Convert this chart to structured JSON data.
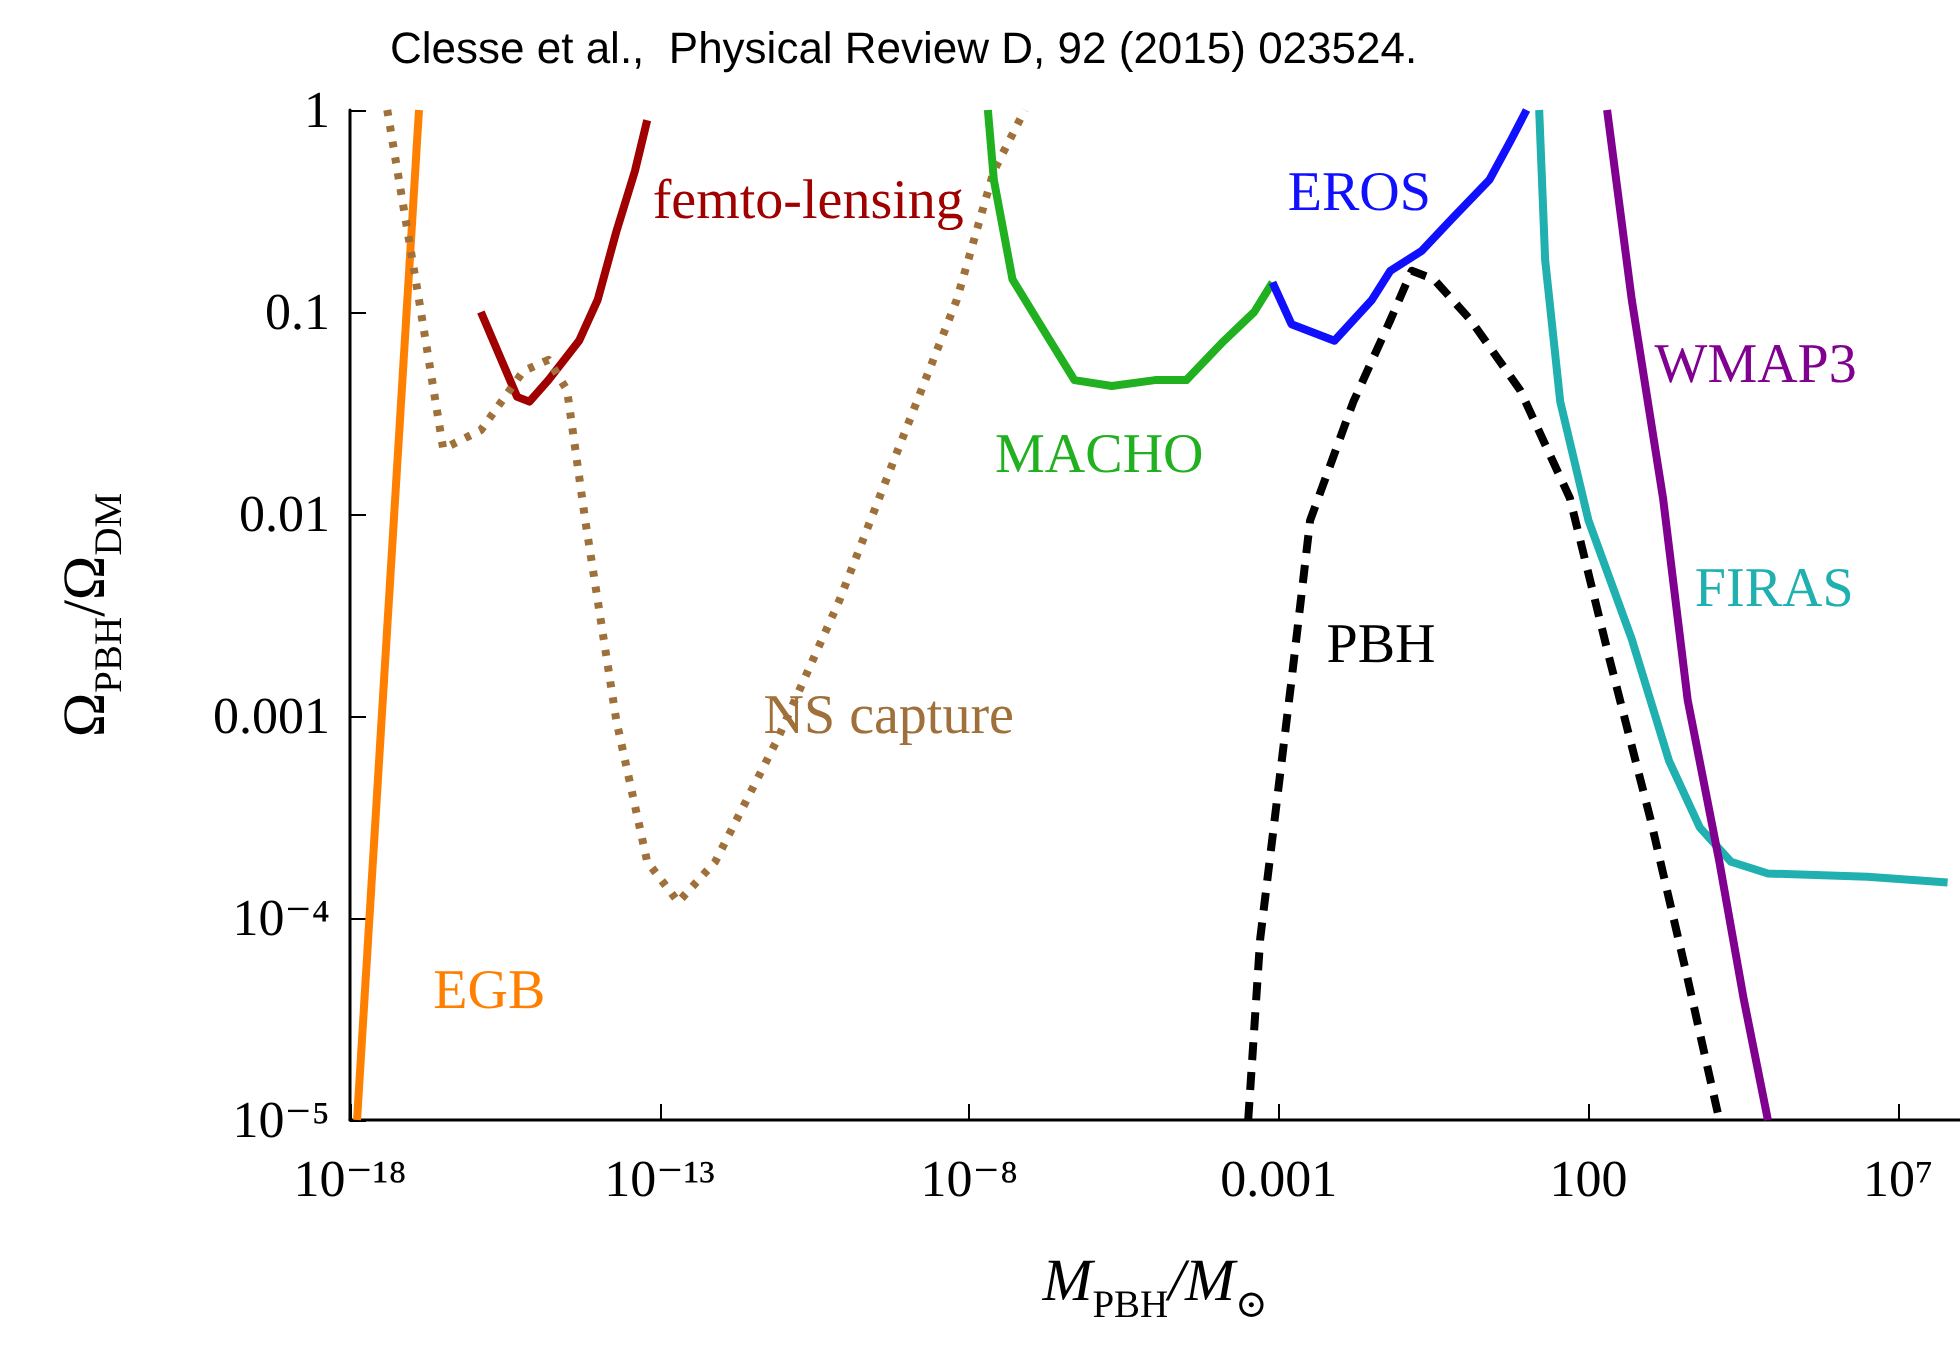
{
  "chart_data": {
    "type": "line",
    "title": "Clesse et al.,  Physical Review D, 92 (2015) 023524.",
    "xlabel": "M$_{PBH}$/M$_{⊙}$",
    "ylabel": "Ω$_{PBH}$/Ω$_{DM}$",
    "log": "xy",
    "grid": false,
    "legend": false,
    "marker": "none",
    "line_style": "solid",
    "xlim": [
      1e-18,
      100000000.0
    ],
    "ylim": [
      1e-05,
      1
    ],
    "xticks": [
      {
        "value": 1e-18,
        "label": "10⁻¹⁸"
      },
      {
        "value": 1e-13,
        "label": "10⁻¹³"
      },
      {
        "value": 1e-08,
        "label": "10⁻⁸"
      },
      0.001,
      100,
      {
        "value": 10000000.0,
        "label": "10⁷"
      }
    ],
    "yticks": [
      {
        "value": 1e-05,
        "label": "10⁻⁵"
      },
      {
        "value": 0.0001,
        "label": "10⁻⁴"
      },
      0.001,
      0.01,
      0.1,
      1
    ],
    "series": [
      {
        "name": "EGB",
        "color": "#ff8000",
        "x": [
          1.3e-18,
          1.3e-17
        ],
        "values": [
          1e-05,
          1
        ]
      },
      {
        "name": "femto-lensing",
        "color": "#a00000",
        "x": [
          1.3e-16,
          5e-16,
          7.9e-16,
          1.6e-15,
          5e-15,
          1e-14,
          2e-14,
          4e-14,
          6.3e-14
        ],
        "values": [
          0.1,
          0.038,
          0.036,
          0.046,
          0.072,
          0.115,
          0.25,
          0.5,
          0.89
        ]
      },
      {
        "name": "NS capture",
        "color": "#a0703a",
        "line_style": "dotted",
        "x": [
          4e-18,
          1.3e-17,
          3.2e-17,
          1.3e-16,
          6.3e-16,
          1.6e-15,
          3.2e-15,
          6.3e-15,
          2e-14,
          6.3e-14,
          2e-13,
          7.9e-13,
          7.9e-12,
          7.9e-11,
          6.3e-10,
          6.3e-09,
          2.5e-08,
          7.9e-08
        ],
        "values": [
          1,
          0.115,
          0.021,
          0.026,
          0.051,
          0.058,
          0.041,
          0.0093,
          0.00095,
          0.00019,
          0.00012,
          0.00019,
          0.00076,
          0.0037,
          0.019,
          0.115,
          0.5,
          1
        ]
      },
      {
        "name": "MACHO",
        "color": "#20b020",
        "x": [
          2e-08,
          2.5e-08,
          5e-08,
          1.6e-07,
          5e-07,
          2e-06,
          1e-05,
          3.2e-05,
          0.00013,
          0.0004,
          0.00079
        ],
        "values": [
          1,
          0.45,
          0.145,
          0.081,
          0.046,
          0.043,
          0.046,
          0.046,
          0.072,
          0.1,
          0.14
        ]
      },
      {
        "name": "EROS",
        "color": "#1010ff",
        "x": [
          0.00079,
          0.0016,
          0.0079,
          0.032,
          0.063,
          0.2,
          0.63,
          2.5,
          5.6,
          10
        ],
        "values": [
          0.14,
          0.087,
          0.072,
          0.115,
          0.16,
          0.2,
          0.29,
          0.45,
          0.71,
          1
        ]
      },
      {
        "name": "FIRAS",
        "color": "#20b0b0",
        "x": [
          16,
          20,
          35,
          100,
          500,
          2000,
          6300,
          20000,
          79000,
          3200000,
          63000000
        ],
        "values": [
          1,
          0.18,
          0.036,
          0.0093,
          0.0024,
          0.0006,
          0.00028,
          0.00019,
          0.000166,
          0.00016,
          0.00015
        ]
      },
      {
        "name": "WMAP3",
        "color": "#800090",
        "x": [
          200,
          500,
          1600,
          4000,
          13000,
          32000,
          79000
        ],
        "values": [
          1,
          0.115,
          0.012,
          0.0012,
          0.00019,
          4e-05,
          1e-05
        ]
      },
      {
        "name": "PBH",
        "color": "#000000",
        "line_style": "dashed",
        "x": [
          0.00032,
          0.0005,
          0.0016,
          0.0032,
          0.016,
          0.063,
          0.14,
          0.32,
          1.26,
          7.9,
          50,
          220,
          1000,
          4000,
          13000
        ],
        "values": [
          1e-05,
          7.9e-05,
          0.0015,
          0.0093,
          0.036,
          0.091,
          0.16,
          0.145,
          0.091,
          0.041,
          0.012,
          0.0019,
          0.00031,
          5e-05,
          1e-05
        ]
      }
    ]
  }
}
